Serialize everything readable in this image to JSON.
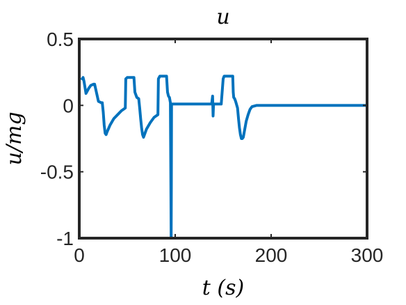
{
  "chart_data": {
    "type": "line",
    "title": "u",
    "xlabel": "t (s)",
    "ylabel": "u/mg",
    "xlim": [
      0,
      300
    ],
    "ylim": [
      -1,
      0.5
    ],
    "xticks": [
      0,
      100,
      200,
      300
    ],
    "xtick_labels": [
      "0",
      "100",
      "200",
      "300"
    ],
    "yticks": [
      0.5,
      0,
      -0.5,
      -1
    ],
    "ytick_labels": [
      "0.5",
      "0",
      "-0.5",
      "-1"
    ],
    "grid": false,
    "series": [
      {
        "color": "#0072BD",
        "x": [
          3,
          4,
          5,
          7,
          10,
          12,
          15,
          16,
          20,
          23,
          24,
          25,
          26,
          27,
          28,
          29,
          32,
          36,
          40,
          44,
          48,
          48.5,
          50,
          52,
          54,
          56,
          57,
          58,
          60,
          62,
          63,
          64,
          65,
          66,
          67,
          68,
          70,
          74,
          78,
          82,
          82.5,
          84,
          86,
          88,
          90,
          91,
          92,
          93,
          94,
          95,
          95.5,
          95.8,
          96,
          96.2,
          97,
          100,
          110,
          120,
          130,
          138,
          139,
          139.5,
          140,
          140.5,
          141,
          142,
          145,
          148,
          150,
          151,
          152,
          154,
          156,
          158,
          160,
          160.5,
          161,
          162,
          163,
          165,
          166,
          167,
          168,
          169,
          170,
          171,
          172,
          174,
          176,
          178,
          180,
          185,
          190,
          200,
          220,
          250,
          300
        ],
        "y": [
          0.2,
          0.21,
          0.18,
          0.09,
          0.13,
          0.15,
          0.16,
          0.16,
          0.03,
          0.02,
          0.02,
          -0.05,
          -0.15,
          -0.21,
          -0.22,
          -0.2,
          -0.15,
          -0.1,
          -0.07,
          -0.04,
          -0.02,
          0.2,
          0.21,
          0.21,
          0.21,
          0.21,
          0.21,
          0.1,
          0.06,
          0.05,
          -0.02,
          -0.1,
          -0.17,
          -0.22,
          -0.24,
          -0.22,
          -0.18,
          -0.13,
          -0.09,
          -0.07,
          0.2,
          0.22,
          0.22,
          0.22,
          0.22,
          0.22,
          0.1,
          0.07,
          0.06,
          0.02,
          -0.6,
          -1.0,
          -0.6,
          0.01,
          0.01,
          0.01,
          0.01,
          0.01,
          0.01,
          0.01,
          0.07,
          -0.08,
          0.01,
          0.01,
          0.01,
          0.01,
          0.01,
          0.01,
          0.2,
          0.22,
          0.22,
          0.22,
          0.22,
          0.22,
          0.22,
          0.1,
          0.06,
          0.05,
          0.03,
          -0.02,
          -0.1,
          -0.17,
          -0.22,
          -0.25,
          -0.25,
          -0.24,
          -0.2,
          -0.12,
          -0.07,
          -0.03,
          -0.01,
          0.0,
          0.0,
          0.0,
          0.0,
          0.0,
          0.0
        ]
      }
    ]
  }
}
